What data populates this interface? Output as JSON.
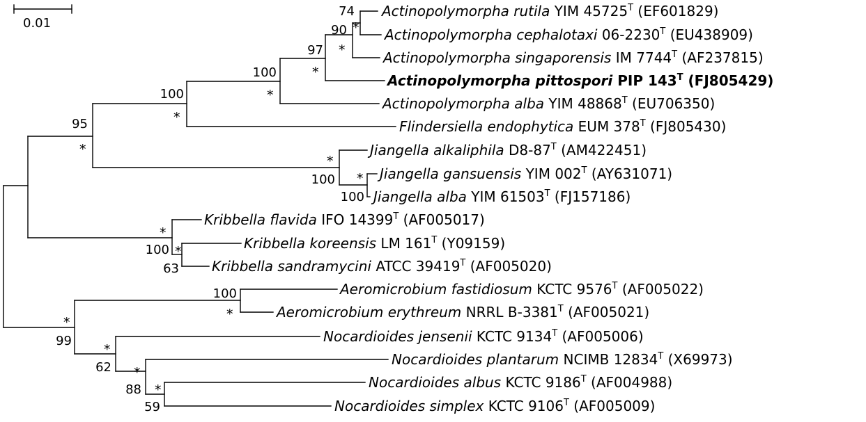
{
  "scale_bar": {
    "label": "0.01"
  },
  "taxa": [
    {
      "id": "a_rutila",
      "genus": "Actinopolymorpha",
      "species": "rutila",
      "strain": "YIM 45725",
      "type_mark": "T",
      "accession": "(EF601829)",
      "bold": false
    },
    {
      "id": "a_cephalotaxi",
      "genus": "Actinopolymorpha",
      "species": "cephalotaxi ",
      "strain": "06-2230",
      "type_mark": "T",
      "accession": "(EU438909)",
      "bold": false
    },
    {
      "id": "a_singaporensis",
      "genus": "Actinopolymorpha",
      "species": "singaporensis",
      "strain": "IM 7744",
      "type_mark": "T",
      "accession": "(AF237815)",
      "bold": false
    },
    {
      "id": "a_pittospori",
      "genus": "Actinopolymorpha",
      "species": "pittospori",
      "strain": "PIP 143",
      "type_mark": "T",
      "accession": "(FJ805429)",
      "bold": true
    },
    {
      "id": "a_alba",
      "genus": "Actinopolymorpha",
      "species": "alba",
      "strain": "YIM 48868",
      "type_mark": "T",
      "accession": "(EU706350)",
      "bold": false
    },
    {
      "id": "f_endophytica",
      "genus": "Flindersiella",
      "species": "endophytica",
      "strain": "EUM 378",
      "type_mark": "T",
      "accession": "(FJ805430)",
      "bold": false
    },
    {
      "id": "j_alkaliphila",
      "genus": "Jiangella",
      "species": "alkaliphila",
      "strain": "D8-87",
      "type_mark": "T",
      "accession": "(AM422451)",
      "bold": false
    },
    {
      "id": "j_gansuensis",
      "genus": "Jiangella",
      "species": "gansuensis",
      "strain": "YIM 002",
      "type_mark": "T",
      "accession": "(AY631071)",
      "bold": false
    },
    {
      "id": "j_alba",
      "genus": "Jiangella",
      "species": "alba",
      "strain": "YIM 61503",
      "type_mark": "T",
      "accession": "(FJ157186)",
      "bold": false
    },
    {
      "id": "k_flavida",
      "genus": "Kribbella",
      "species": "flavida",
      "strain": "IFO 14399",
      "type_mark": "T",
      "accession": "(AF005017)",
      "bold": false
    },
    {
      "id": "k_koreensis",
      "genus": "Kribbella",
      "species": "koreensis",
      "strain": "LM 161",
      "type_mark": "T",
      "accession": "(Y09159)",
      "bold": false
    },
    {
      "id": "k_sandramycini",
      "genus": "Kribbella",
      "species": "sandramycini",
      "strain": "ATCC 39419",
      "type_mark": "T",
      "accession": "(AF005020)",
      "bold": false
    },
    {
      "id": "ae_fastidiosum",
      "genus": "Aeromicrobium",
      "species": "fastidiosum",
      "strain": "KCTC 9576",
      "type_mark": "T",
      "accession": "(AF005022)",
      "bold": false
    },
    {
      "id": "ae_erythreum",
      "genus": "Aeromicrobium",
      "species": "erythreum",
      "strain": "NRRL B-3381",
      "type_mark": "T",
      "accession": "(AF005021)",
      "bold": false
    },
    {
      "id": "n_jensenii",
      "genus": "Nocardioides",
      "species": "jensenii",
      "strain": "KCTC 9134",
      "type_mark": "T",
      "accession": "(AF005006)",
      "bold": false
    },
    {
      "id": "n_plantarum",
      "genus": "Nocardioides",
      "species": "plantarum",
      "strain": "NCIMB 12834",
      "type_mark": "T",
      "accession": "(X69973)",
      "bold": false
    },
    {
      "id": "n_albus",
      "genus": "Nocardioides",
      "species": "albus",
      "strain": "KCTC 9186",
      "type_mark": "T",
      "accession": "(AF004988)",
      "bold": false
    },
    {
      "id": "n_simplex",
      "genus": "Nocardioides",
      "species": "simplex",
      "strain": "KCTC 9106",
      "type_mark": "T",
      "accession": "(AF005009)",
      "bold": false
    }
  ],
  "bootstrap": [
    {
      "id": "bs_rutila_ceph",
      "value": "74"
    },
    {
      "id": "bs_actino_top3",
      "value": "90"
    },
    {
      "id": "bs_actino_top4",
      "value": "97"
    },
    {
      "id": "bs_actino_all",
      "value": "100"
    },
    {
      "id": "bs_actino_flind",
      "value": "100"
    },
    {
      "id": "bs_upper_group",
      "value": "95"
    },
    {
      "id": "bs_jiangella",
      "value": "100"
    },
    {
      "id": "bs_jiangella_inner",
      "value": "100"
    },
    {
      "id": "bs_kribbella",
      "value": "100"
    },
    {
      "id": "bs_kribbella_inner",
      "value": "63"
    },
    {
      "id": "bs_aeromicrobium",
      "value": "100"
    },
    {
      "id": "bs_lower_group",
      "value": "99"
    },
    {
      "id": "bs_nocardioides",
      "value": "62"
    },
    {
      "id": "bs_nocardioides_inner",
      "value": "88"
    },
    {
      "id": "bs_nocardioides_albsimp",
      "value": "59"
    }
  ],
  "star_symbol": "*"
}
